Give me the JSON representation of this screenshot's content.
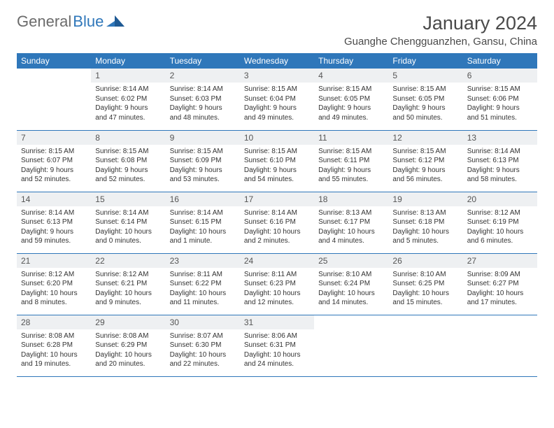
{
  "brand": {
    "part1": "General",
    "part2": "Blue"
  },
  "title": "January 2024",
  "location": "Guanghe Chengguanzhen, Gansu, China",
  "colors": {
    "accent": "#2f77ba",
    "header_bg": "#eef0f2",
    "text": "#333333",
    "brand_gray": "#6b6b6b"
  },
  "weekdays": [
    "Sunday",
    "Monday",
    "Tuesday",
    "Wednesday",
    "Thursday",
    "Friday",
    "Saturday"
  ],
  "weeks": [
    [
      {
        "day": "",
        "lines": [
          "",
          "",
          "",
          ""
        ]
      },
      {
        "day": "1",
        "lines": [
          "Sunrise: 8:14 AM",
          "Sunset: 6:02 PM",
          "Daylight: 9 hours",
          "and 47 minutes."
        ]
      },
      {
        "day": "2",
        "lines": [
          "Sunrise: 8:14 AM",
          "Sunset: 6:03 PM",
          "Daylight: 9 hours",
          "and 48 minutes."
        ]
      },
      {
        "day": "3",
        "lines": [
          "Sunrise: 8:15 AM",
          "Sunset: 6:04 PM",
          "Daylight: 9 hours",
          "and 49 minutes."
        ]
      },
      {
        "day": "4",
        "lines": [
          "Sunrise: 8:15 AM",
          "Sunset: 6:05 PM",
          "Daylight: 9 hours",
          "and 49 minutes."
        ]
      },
      {
        "day": "5",
        "lines": [
          "Sunrise: 8:15 AM",
          "Sunset: 6:05 PM",
          "Daylight: 9 hours",
          "and 50 minutes."
        ]
      },
      {
        "day": "6",
        "lines": [
          "Sunrise: 8:15 AM",
          "Sunset: 6:06 PM",
          "Daylight: 9 hours",
          "and 51 minutes."
        ]
      }
    ],
    [
      {
        "day": "7",
        "lines": [
          "Sunrise: 8:15 AM",
          "Sunset: 6:07 PM",
          "Daylight: 9 hours",
          "and 52 minutes."
        ]
      },
      {
        "day": "8",
        "lines": [
          "Sunrise: 8:15 AM",
          "Sunset: 6:08 PM",
          "Daylight: 9 hours",
          "and 52 minutes."
        ]
      },
      {
        "day": "9",
        "lines": [
          "Sunrise: 8:15 AM",
          "Sunset: 6:09 PM",
          "Daylight: 9 hours",
          "and 53 minutes."
        ]
      },
      {
        "day": "10",
        "lines": [
          "Sunrise: 8:15 AM",
          "Sunset: 6:10 PM",
          "Daylight: 9 hours",
          "and 54 minutes."
        ]
      },
      {
        "day": "11",
        "lines": [
          "Sunrise: 8:15 AM",
          "Sunset: 6:11 PM",
          "Daylight: 9 hours",
          "and 55 minutes."
        ]
      },
      {
        "day": "12",
        "lines": [
          "Sunrise: 8:15 AM",
          "Sunset: 6:12 PM",
          "Daylight: 9 hours",
          "and 56 minutes."
        ]
      },
      {
        "day": "13",
        "lines": [
          "Sunrise: 8:14 AM",
          "Sunset: 6:13 PM",
          "Daylight: 9 hours",
          "and 58 minutes."
        ]
      }
    ],
    [
      {
        "day": "14",
        "lines": [
          "Sunrise: 8:14 AM",
          "Sunset: 6:13 PM",
          "Daylight: 9 hours",
          "and 59 minutes."
        ]
      },
      {
        "day": "15",
        "lines": [
          "Sunrise: 8:14 AM",
          "Sunset: 6:14 PM",
          "Daylight: 10 hours",
          "and 0 minutes."
        ]
      },
      {
        "day": "16",
        "lines": [
          "Sunrise: 8:14 AM",
          "Sunset: 6:15 PM",
          "Daylight: 10 hours",
          "and 1 minute."
        ]
      },
      {
        "day": "17",
        "lines": [
          "Sunrise: 8:14 AM",
          "Sunset: 6:16 PM",
          "Daylight: 10 hours",
          "and 2 minutes."
        ]
      },
      {
        "day": "18",
        "lines": [
          "Sunrise: 8:13 AM",
          "Sunset: 6:17 PM",
          "Daylight: 10 hours",
          "and 4 minutes."
        ]
      },
      {
        "day": "19",
        "lines": [
          "Sunrise: 8:13 AM",
          "Sunset: 6:18 PM",
          "Daylight: 10 hours",
          "and 5 minutes."
        ]
      },
      {
        "day": "20",
        "lines": [
          "Sunrise: 8:12 AM",
          "Sunset: 6:19 PM",
          "Daylight: 10 hours",
          "and 6 minutes."
        ]
      }
    ],
    [
      {
        "day": "21",
        "lines": [
          "Sunrise: 8:12 AM",
          "Sunset: 6:20 PM",
          "Daylight: 10 hours",
          "and 8 minutes."
        ]
      },
      {
        "day": "22",
        "lines": [
          "Sunrise: 8:12 AM",
          "Sunset: 6:21 PM",
          "Daylight: 10 hours",
          "and 9 minutes."
        ]
      },
      {
        "day": "23",
        "lines": [
          "Sunrise: 8:11 AM",
          "Sunset: 6:22 PM",
          "Daylight: 10 hours",
          "and 11 minutes."
        ]
      },
      {
        "day": "24",
        "lines": [
          "Sunrise: 8:11 AM",
          "Sunset: 6:23 PM",
          "Daylight: 10 hours",
          "and 12 minutes."
        ]
      },
      {
        "day": "25",
        "lines": [
          "Sunrise: 8:10 AM",
          "Sunset: 6:24 PM",
          "Daylight: 10 hours",
          "and 14 minutes."
        ]
      },
      {
        "day": "26",
        "lines": [
          "Sunrise: 8:10 AM",
          "Sunset: 6:25 PM",
          "Daylight: 10 hours",
          "and 15 minutes."
        ]
      },
      {
        "day": "27",
        "lines": [
          "Sunrise: 8:09 AM",
          "Sunset: 6:27 PM",
          "Daylight: 10 hours",
          "and 17 minutes."
        ]
      }
    ],
    [
      {
        "day": "28",
        "lines": [
          "Sunrise: 8:08 AM",
          "Sunset: 6:28 PM",
          "Daylight: 10 hours",
          "and 19 minutes."
        ]
      },
      {
        "day": "29",
        "lines": [
          "Sunrise: 8:08 AM",
          "Sunset: 6:29 PM",
          "Daylight: 10 hours",
          "and 20 minutes."
        ]
      },
      {
        "day": "30",
        "lines": [
          "Sunrise: 8:07 AM",
          "Sunset: 6:30 PM",
          "Daylight: 10 hours",
          "and 22 minutes."
        ]
      },
      {
        "day": "31",
        "lines": [
          "Sunrise: 8:06 AM",
          "Sunset: 6:31 PM",
          "Daylight: 10 hours",
          "and 24 minutes."
        ]
      },
      {
        "day": "",
        "lines": [
          "",
          "",
          "",
          ""
        ]
      },
      {
        "day": "",
        "lines": [
          "",
          "",
          "",
          ""
        ]
      },
      {
        "day": "",
        "lines": [
          "",
          "",
          "",
          ""
        ]
      }
    ]
  ]
}
